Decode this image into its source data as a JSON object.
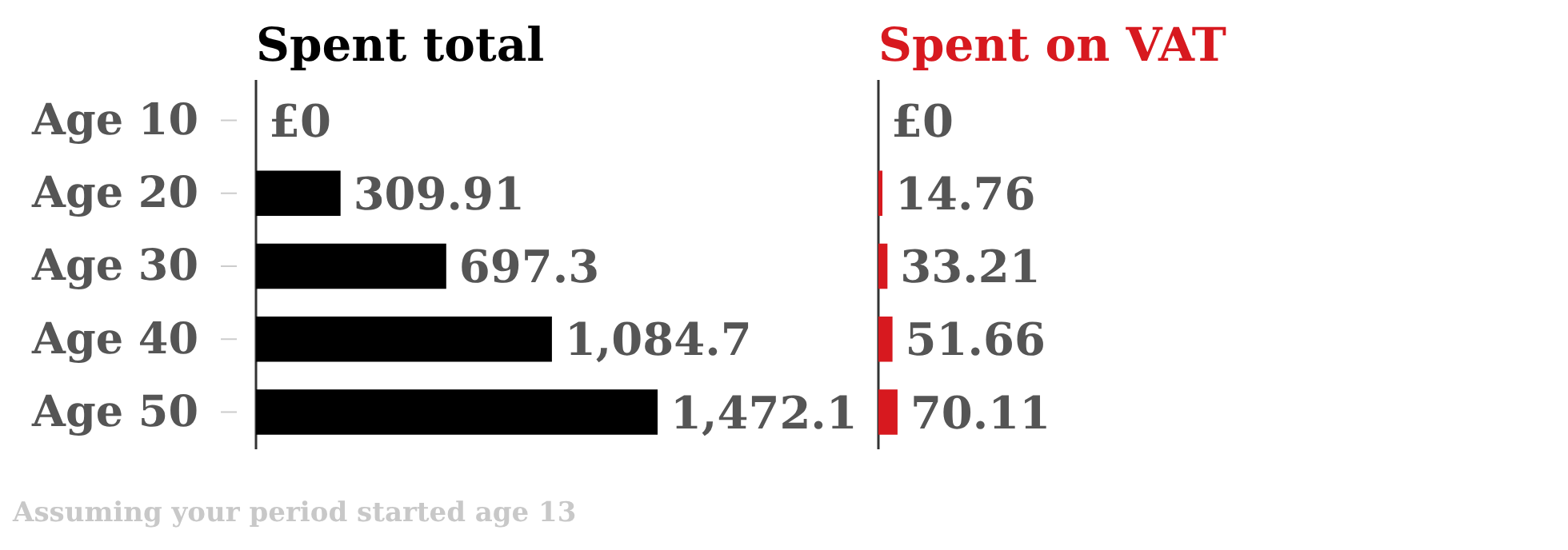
{
  "chart_data": [
    {
      "type": "bar",
      "orientation": "horizontal",
      "title": "Spent total",
      "categories": [
        "Age 10",
        "Age 20",
        "Age 30",
        "Age 40",
        "Age 50"
      ],
      "values": [
        0,
        309.91,
        697.3,
        1084.7,
        1472.1
      ],
      "value_labels": [
        "£0",
        "309.91",
        "697.3",
        "1,084.7",
        "1,472.1"
      ],
      "color": "#000000",
      "annotations": [
        "Assuming your period started age 13"
      ]
    },
    {
      "type": "bar",
      "orientation": "horizontal",
      "title": "Spent on VAT",
      "categories": [
        null,
        null,
        null,
        null,
        null
      ],
      "values": [
        0,
        14.76,
        33.21,
        51.66,
        70.11
      ],
      "value_labels": [
        "£0",
        "14.76",
        "33.21",
        "51.66",
        "70.11"
      ],
      "color": "#d7191f",
      "tick_labels": false
    }
  ]
}
